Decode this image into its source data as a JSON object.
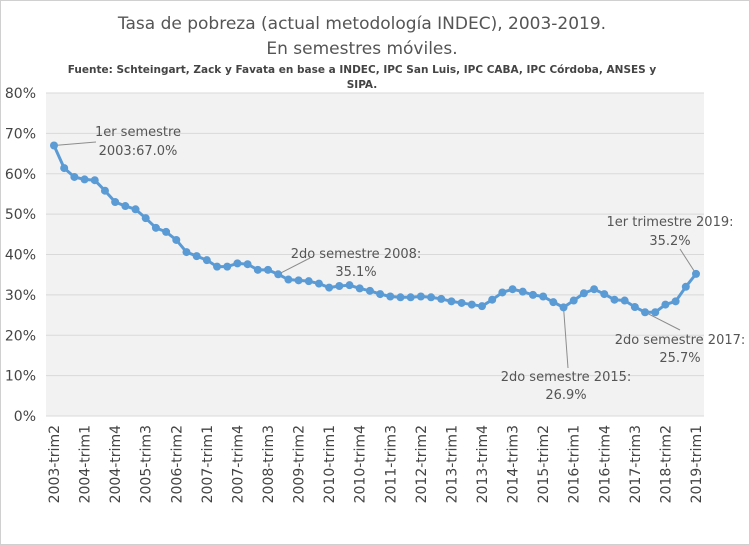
{
  "chart_data": {
    "type": "line",
    "title_line1": "Tasa de pobreza (actual metodología INDEC), 2003-2019.",
    "title_line2": "En semestres móviles.",
    "source_line1": "Fuente: Schteingart, Zack y Favata en base a INDEC, IPC San Luis, IPC CABA, IPC Córdoba, ANSES y",
    "source_line2": "SIPA.",
    "xlabel": "",
    "ylabel": "",
    "ylim": [
      0,
      80
    ],
    "y_ticks": [
      "0%",
      "10%",
      "20%",
      "30%",
      "40%",
      "50%",
      "60%",
      "70%",
      "80%"
    ],
    "x_tick_labels": [
      "2003-trim2",
      "2004-trim1",
      "2004-trim4",
      "2005-trim3",
      "2006-trim2",
      "2007-trim1",
      "2007-trim4",
      "2008-trim3",
      "2009-trim2",
      "2010-trim1",
      "2010-trim4",
      "2011-trim3",
      "2012-trim2",
      "2013-trim1",
      "2013-trim4",
      "2014-trim3",
      "2015-trim2",
      "2016-trim1",
      "2016-trim4",
      "2017-trim3",
      "2018-trim2",
      "2019-trim1"
    ],
    "grid": true,
    "color": "#5b9bd5",
    "values": [
      67.0,
      61.4,
      59.2,
      58.6,
      58.4,
      55.8,
      53.0,
      52.0,
      51.2,
      49.0,
      46.6,
      45.6,
      43.6,
      40.6,
      39.6,
      38.6,
      37.0,
      37.0,
      37.8,
      37.6,
      36.2,
      36.2,
      35.1,
      33.8,
      33.6,
      33.4,
      32.8,
      31.8,
      32.2,
      32.4,
      31.6,
      31.0,
      30.2,
      29.6,
      29.4,
      29.4,
      29.6,
      29.4,
      29.0,
      28.4,
      28.0,
      27.6,
      27.2,
      28.8,
      30.6,
      31.4,
      30.8,
      30.0,
      29.6,
      28.2,
      26.9,
      28.6,
      30.4,
      31.4,
      30.2,
      28.8,
      28.6,
      27.0,
      25.7,
      25.7,
      27.6,
      28.4,
      32.0,
      35.2
    ],
    "annotations": [
      {
        "lines": [
          "1er semestre",
          "2003:67.0%"
        ]
      },
      {
        "lines": [
          "2do semestre 2008:",
          "35.1%"
        ]
      },
      {
        "lines": [
          "1er trimestre 2019:",
          "35.2%"
        ]
      },
      {
        "lines": [
          "2do semestre 2017:",
          "25.7%"
        ]
      },
      {
        "lines": [
          "2do semestre 2015:",
          "26.9%"
        ]
      }
    ]
  }
}
